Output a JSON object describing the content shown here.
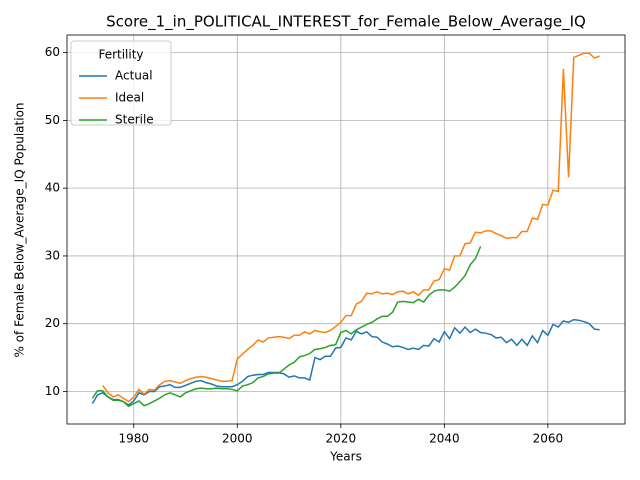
{
  "chart_data": {
    "type": "line",
    "title": "Score_1_in_POLITICAL_INTEREST_for_Female_Below_Average_IQ",
    "x_label": "Years",
    "y_label": "% of Female Below_Average_IQ Population",
    "legend_title": "Fertility",
    "legend_position": "upper left",
    "grid": true,
    "x": [
      1972,
      1973,
      1974,
      1975,
      1976,
      1977,
      1978,
      1979,
      1980,
      1981,
      1982,
      1983,
      1984,
      1985,
      1986,
      1987,
      1988,
      1989,
      1990,
      1991,
      1992,
      1993,
      1994,
      1995,
      1996,
      1997,
      1998,
      1999,
      2000,
      2001,
      2002,
      2003,
      2004,
      2005,
      2006,
      2007,
      2008,
      2009,
      2010,
      2011,
      2012,
      2013,
      2014,
      2015,
      2016,
      2017,
      2018,
      2019,
      2020,
      2021,
      2022,
      2023,
      2024,
      2025,
      2026,
      2027,
      2028,
      2029,
      2030,
      2031,
      2032,
      2033,
      2034,
      2035,
      2036,
      2037,
      2038,
      2039,
      2040,
      2041,
      2042,
      2043,
      2044,
      2045,
      2046,
      2047,
      2048,
      2049,
      2050,
      2051,
      2052,
      2053,
      2054,
      2055,
      2056,
      2057,
      2058,
      2059,
      2060,
      2061,
      2062,
      2063,
      2064,
      2065,
      2066,
      2067,
      2068,
      2069,
      2070
    ],
    "series": [
      {
        "name": "Actual",
        "color": "#1f77b4",
        "values": [
          8.2,
          9.5,
          9.8,
          9.2,
          8.8,
          8.8,
          8.5,
          8.0,
          8.6,
          9.8,
          9.5,
          10.0,
          10.0,
          10.7,
          10.8,
          11.0,
          10.6,
          10.6,
          10.9,
          11.2,
          11.5,
          11.6,
          11.3,
          11.1,
          10.8,
          10.7,
          10.7,
          10.7,
          11.0,
          11.5,
          12.2,
          12.4,
          12.5,
          12.5,
          12.8,
          12.8,
          12.8,
          12.6,
          12.1,
          12.3,
          12.0,
          12.0,
          11.7,
          15.0,
          14.7,
          15.2,
          15.2,
          16.4,
          16.5,
          17.9,
          17.6,
          18.9,
          18.5,
          18.8,
          18.1,
          18.0,
          17.3,
          17.0,
          16.6,
          16.7,
          16.5,
          16.2,
          16.4,
          16.2,
          16.8,
          16.7,
          17.8,
          17.3,
          18.8,
          17.8,
          19.4,
          18.6,
          19.5,
          18.7,
          19.2,
          18.7,
          18.6,
          18.4,
          17.9,
          18.0,
          17.2,
          17.7,
          16.8,
          17.7,
          16.8,
          18.2,
          17.2,
          19.0,
          18.3,
          19.9,
          19.5,
          20.4,
          20.2,
          20.6,
          20.5,
          20.3,
          20.0,
          19.2,
          19.1
        ]
      },
      {
        "name": "Ideal",
        "color": "#ff7f0e",
        "values": [
          null,
          null,
          10.9,
          9.8,
          9.2,
          9.5,
          9.0,
          8.5,
          9.2,
          10.3,
          9.6,
          10.3,
          10.2,
          11.0,
          11.5,
          11.6,
          11.4,
          11.2,
          11.6,
          11.9,
          12.1,
          12.2,
          12.1,
          11.9,
          11.7,
          11.5,
          11.5,
          11.6,
          14.8,
          15.5,
          16.2,
          16.8,
          17.6,
          17.3,
          17.9,
          18.0,
          18.1,
          18.0,
          17.8,
          18.3,
          18.3,
          18.8,
          18.5,
          19.0,
          18.8,
          18.7,
          19.0,
          19.6,
          20.2,
          21.2,
          21.2,
          22.9,
          23.3,
          24.5,
          24.4,
          24.7,
          24.4,
          24.5,
          24.3,
          24.7,
          24.8,
          24.4,
          24.7,
          24.2,
          25.0,
          25.0,
          26.3,
          26.5,
          28.1,
          27.9,
          30.0,
          30.0,
          31.8,
          31.9,
          33.5,
          33.4,
          33.7,
          33.7,
          33.3,
          33.0,
          32.6,
          32.7,
          32.7,
          33.6,
          33.6,
          35.6,
          35.4,
          37.6,
          37.5,
          39.7,
          39.5,
          57.6,
          41.6,
          59.3,
          59.6,
          59.9,
          59.9,
          59.2,
          59.5
        ]
      },
      {
        "name": "Sterile",
        "color": "#2ca02c",
        "values": [
          9.0,
          10.1,
          10.1,
          9.2,
          8.7,
          8.7,
          8.5,
          7.8,
          8.2,
          8.6,
          7.9,
          8.2,
          8.6,
          9.0,
          9.5,
          9.8,
          9.5,
          9.2,
          9.8,
          10.1,
          10.4,
          10.5,
          10.4,
          10.4,
          10.5,
          10.4,
          10.4,
          10.3,
          10.1,
          10.8,
          11.0,
          11.3,
          12.0,
          12.2,
          12.6,
          12.7,
          12.7,
          13.3,
          13.9,
          14.3,
          15.1,
          15.3,
          15.6,
          16.2,
          16.3,
          16.5,
          16.8,
          16.9,
          18.7,
          19.0,
          18.5,
          19.1,
          19.5,
          19.9,
          20.2,
          20.7,
          21.1,
          21.1,
          21.7,
          23.2,
          23.3,
          23.2,
          23.1,
          23.6,
          23.2,
          24.2,
          24.8,
          25.0,
          25.0,
          24.8,
          25.4,
          26.2,
          27.1,
          28.7,
          29.6,
          31.4,
          null,
          null,
          null,
          null,
          null,
          null,
          null,
          null,
          null,
          null,
          null,
          null,
          null,
          null,
          null,
          null,
          null,
          null,
          null,
          null,
          null,
          null,
          null
        ]
      }
    ],
    "xlim": [
      1967.1,
      2074.9
    ],
    "xticks": [
      1980,
      2000,
      2020,
      2040,
      2060
    ],
    "ylim": [
      5.2,
      62.6
    ],
    "yticks": [
      10,
      20,
      30,
      40,
      50,
      60
    ]
  }
}
